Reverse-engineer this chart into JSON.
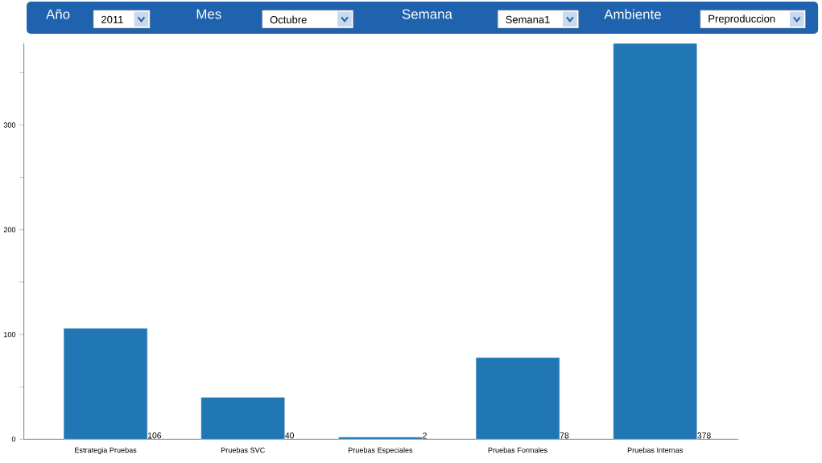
{
  "chart_data": {
    "type": "bar",
    "annotations": [
      "Año",
      "2011",
      "Mes",
      "Octubre",
      "Semana",
      "Semana1",
      "Ambiente",
      "Preproduccion"
    ],
    "categories": [
      "Estrategia Pruebas",
      "Pruebas SVC",
      "Pruebas Especiales",
      "Pruebas Formales",
      "Pruebas Internas"
    ],
    "values": [
      106,
      40,
      2,
      78,
      378
    ],
    "color": "#2077b4",
    "data_labels": true,
    "ylim": [
      0,
      378
    ],
    "yticks": [
      0,
      {
        "value": 50,
        "label": null
      },
      100,
      {
        "value": 150,
        "label": null
      },
      200,
      {
        "value": 250,
        "label": null
      },
      300,
      {
        "value": 350,
        "label": null
      }
    ],
    "grid": false
  }
}
